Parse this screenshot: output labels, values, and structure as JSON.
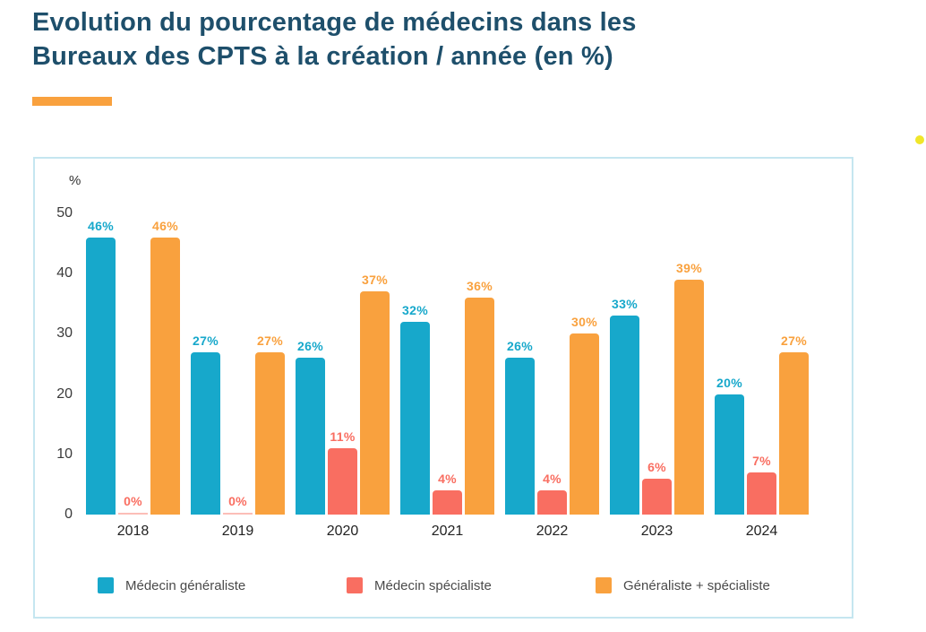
{
  "page": {
    "title": "Evolution du pourcentage de médecins dans les Bureaux des CPTS à la création / année (en %)"
  },
  "chart_data": {
    "type": "bar",
    "title": "Evolution du pourcentage de médecins dans les Bureaux des CPTS à la création / année (en %)",
    "unit_label": "%",
    "categories": [
      "2018",
      "2019",
      "2020",
      "2021",
      "2022",
      "2023",
      "2024"
    ],
    "series": [
      {
        "name": "Médecin généraliste",
        "color": "#17A8CB",
        "values": [
          46,
          27,
          26,
          32,
          26,
          33,
          20
        ]
      },
      {
        "name": "Médecin spécialiste",
        "color": "#F96E61",
        "values": [
          0,
          0,
          11,
          4,
          4,
          6,
          7
        ]
      },
      {
        "name": "Généraliste + spécialiste",
        "color": "#F9A13E",
        "values": [
          46,
          27,
          37,
          36,
          30,
          39,
          27
        ]
      }
    ],
    "value_suffix": "%",
    "y_ticks": [
      0,
      10,
      20,
      30,
      40,
      50
    ],
    "ylim": [
      0,
      50
    ],
    "grid": false,
    "legend_position": "bottom"
  },
  "decor": {
    "accent_color": "#F9A13E",
    "title_color": "#1E4F6B",
    "card_border_color": "#C5E6F0",
    "dot_color": "#F0E62A"
  }
}
